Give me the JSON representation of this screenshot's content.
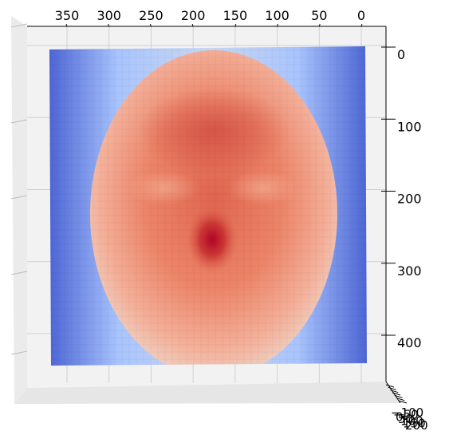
{
  "chart_data": {
    "type": "surface",
    "title": "",
    "colormap": "coolwarm",
    "view": "top-down",
    "grid": true,
    "x_axis": {
      "ticks": [
        "350",
        "300",
        "250",
        "200",
        "150",
        "100",
        "50",
        "0"
      ],
      "tick_values": [
        350,
        300,
        250,
        200,
        150,
        100,
        50,
        0
      ],
      "direction": "reversed"
    },
    "y_axis": {
      "ticks": [
        "0",
        "100",
        "200",
        "300",
        "400"
      ],
      "tick_values": [
        0,
        100,
        200,
        300,
        400
      ]
    },
    "z_axis": {
      "ticks": [
        "−100",
        "−50",
        "0",
        "50",
        "100",
        "150",
        "200"
      ],
      "tick_values": [
        -100,
        -50,
        0,
        50,
        100,
        150,
        200
      ]
    },
    "x_range": [
      0,
      380
    ],
    "y_range": [
      0,
      430
    ],
    "surface_description": "depth map of a human face; high values (red) over face, low values (blue) at borders; peak at nose tip",
    "colors": {
      "low": "#3b4cc0",
      "mid": "#dddddd",
      "high": "#b40426",
      "pane": "#f2f2f2",
      "grid": "#d0d0d0"
    }
  }
}
